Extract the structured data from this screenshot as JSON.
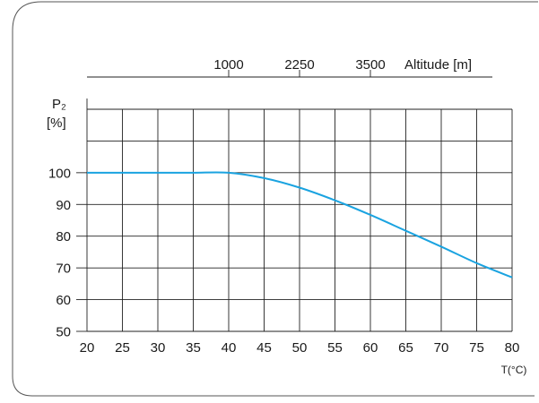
{
  "chart_data": {
    "type": "line",
    "x": [
      20,
      25,
      30,
      35,
      40,
      45,
      50,
      55,
      60,
      65,
      70,
      75,
      80
    ],
    "series": [
      {
        "values": [
          100,
          100,
          100,
          100,
          100,
          98.3,
          95.3,
          91.3,
          86.7,
          81.7,
          76.7,
          71.5,
          67
        ],
        "color": "#1aa3e0"
      }
    ],
    "xlabel": "T(°C)",
    "ylabel": "P₂",
    "ylabel_unit": "[%]",
    "xlim": [
      20,
      80
    ],
    "ylim": [
      50,
      120
    ],
    "x_ticks": [
      20,
      25,
      30,
      35,
      40,
      45,
      50,
      55,
      60,
      65,
      70,
      75,
      80
    ],
    "y_ticks": [
      50,
      60,
      70,
      80,
      90,
      100
    ],
    "grid": true,
    "secondary_axis": {
      "label": "Altitude [m]",
      "ticks": [
        {
          "value": 1000,
          "at_x": 40
        },
        {
          "value": 2250,
          "at_x": 50
        },
        {
          "value": 3500,
          "at_x": 60
        }
      ]
    }
  },
  "colors": {
    "line": "#1aa3e0",
    "grid": "#222222",
    "frame": "#555555"
  }
}
